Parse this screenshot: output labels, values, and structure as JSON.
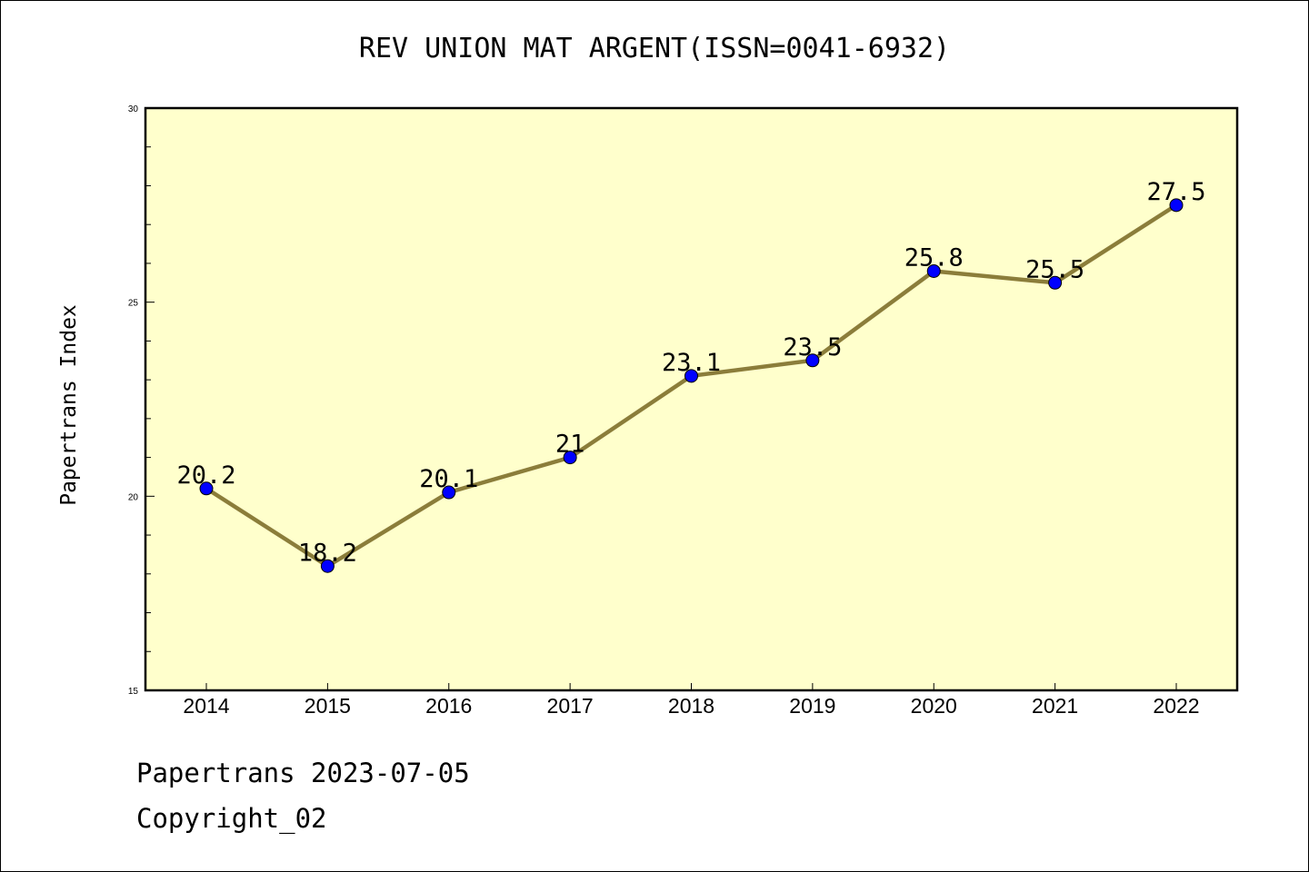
{
  "chart_data": {
    "type": "line",
    "title": "REV UNION MAT ARGENT(ISSN=0041-6932)",
    "xlabel": "",
    "ylabel": "Papertrans Index",
    "categories": [
      "2014",
      "2015",
      "2016",
      "2017",
      "2018",
      "2019",
      "2020",
      "2021",
      "2022"
    ],
    "series": [
      {
        "values": [
          20.2,
          18.2,
          20.1,
          21,
          23.1,
          23.5,
          25.8,
          25.5,
          27.5
        ],
        "data_labels": [
          "20.2",
          "18.2",
          "20.1",
          "21",
          "23.1",
          "23.5",
          "25.8",
          "25.5",
          "27.5"
        ]
      }
    ],
    "ylim": [
      15,
      30
    ],
    "yticks": [
      "15",
      "20",
      "25",
      "30"
    ],
    "grid": false,
    "colors": {
      "plot_background": "#ffffcc",
      "line": "#8b7d3a",
      "marker": "#0000ff"
    }
  },
  "footer": {
    "line1": "Papertrans 2023-07-05",
    "line2": "Copyright_02"
  }
}
